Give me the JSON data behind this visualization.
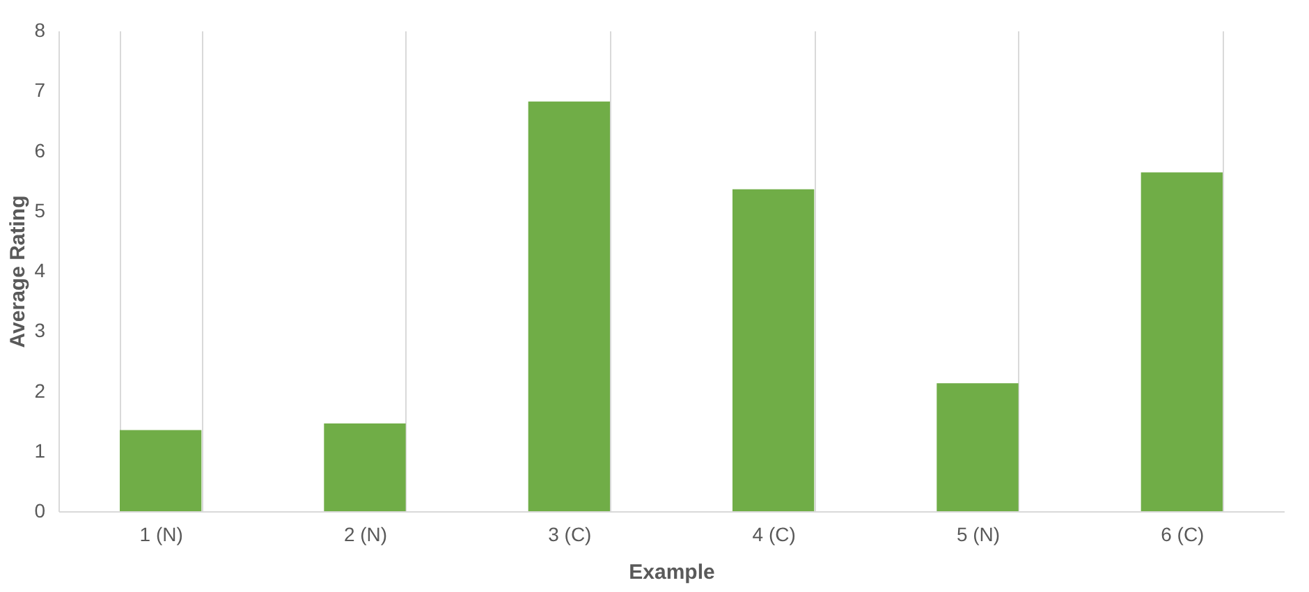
{
  "chart_data": {
    "type": "bar",
    "xlabel": "Example",
    "ylabel": "Average Rating",
    "categories": [
      "1 (N)",
      "2 (N)",
      "3 (C)",
      "4 (C)",
      "5 (N)",
      "6 (C)"
    ],
    "values": [
      1.35,
      1.46,
      6.82,
      5.36,
      2.13,
      5.64
    ],
    "color": "#70ad47",
    "ylim": [
      0,
      8
    ],
    "yticks": [
      0,
      1,
      2,
      3,
      4,
      5,
      6,
      7,
      8
    ],
    "grid": "x"
  }
}
